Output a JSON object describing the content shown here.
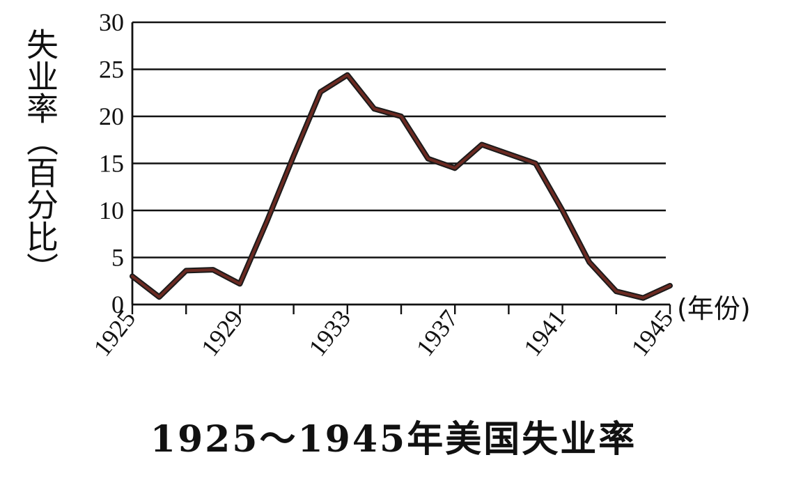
{
  "chart_data": {
    "type": "line",
    "title": "1925～1945年美国失业率",
    "ylabel": "失业率（百分比）",
    "xlabel": "(年份)",
    "xlim": [
      1925,
      1945
    ],
    "ylim": [
      0,
      30
    ],
    "yticks": [
      "0",
      "5",
      "10",
      "15",
      "20",
      "25",
      "30"
    ],
    "xticks": [
      "1925",
      "1929",
      "1933",
      "1937",
      "1941",
      "1945"
    ],
    "grid": "horizontal",
    "line_color": "#6b2a22",
    "x": [
      1925,
      1926,
      1927,
      1928,
      1929,
      1930,
      1931,
      1932,
      1933,
      1934,
      1935,
      1936,
      1937,
      1938,
      1939,
      1940,
      1941,
      1942,
      1943,
      1944,
      1945
    ],
    "values": [
      3.0,
      0.8,
      3.6,
      3.7,
      2.2,
      8.8,
      15.8,
      22.6,
      24.4,
      20.8,
      20.0,
      15.5,
      14.5,
      17.0,
      16.0,
      15.0,
      10.0,
      4.5,
      1.4,
      0.7,
      2.0
    ]
  }
}
